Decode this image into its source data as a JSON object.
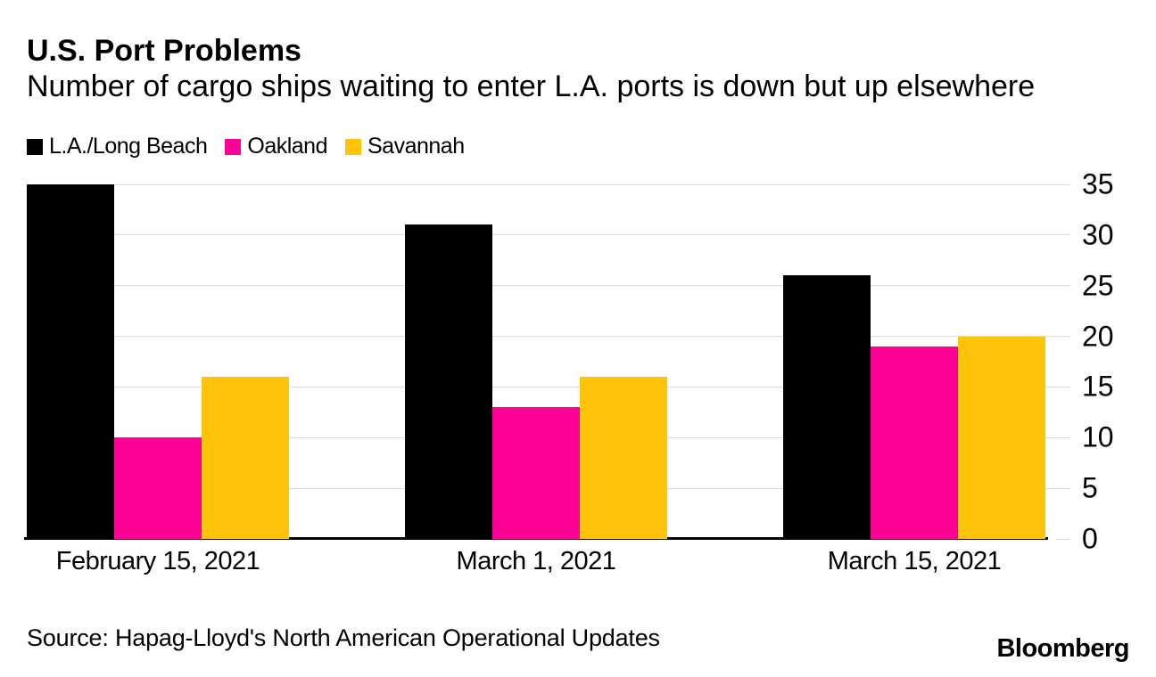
{
  "title": "U.S. Port Problems",
  "subtitle": "Number of cargo ships waiting to enter L.A. ports is down but up elsewhere",
  "source": "Source: Hapag-Lloyd's North American Operational Updates",
  "logo": "Bloomberg",
  "colors": {
    "la_long_beach": "#000000",
    "oakland": "#ff0096",
    "savannah": "#ffc40a",
    "gridline": "#dcdcdc",
    "axis_line": "#000000",
    "background": "#ffffff"
  },
  "chart_data": {
    "type": "bar",
    "categories": [
      "February 15, 2021",
      "March 1, 2021",
      "March 15, 2021"
    ],
    "series": [
      {
        "name": "L.A./Long Beach",
        "color": "#000000",
        "values": [
          35,
          31,
          26
        ]
      },
      {
        "name": "Oakland",
        "color": "#ff0096",
        "values": [
          10,
          13,
          19
        ]
      },
      {
        "name": "Savannah",
        "color": "#ffc40a",
        "values": [
          16,
          16,
          20
        ]
      }
    ],
    "ylim": [
      0,
      35
    ],
    "yticks": [
      0,
      5,
      10,
      15,
      20,
      25,
      30,
      35
    ],
    "grid": "horizontal",
    "legend_position": "top-left",
    "y_axis_side": "right"
  }
}
